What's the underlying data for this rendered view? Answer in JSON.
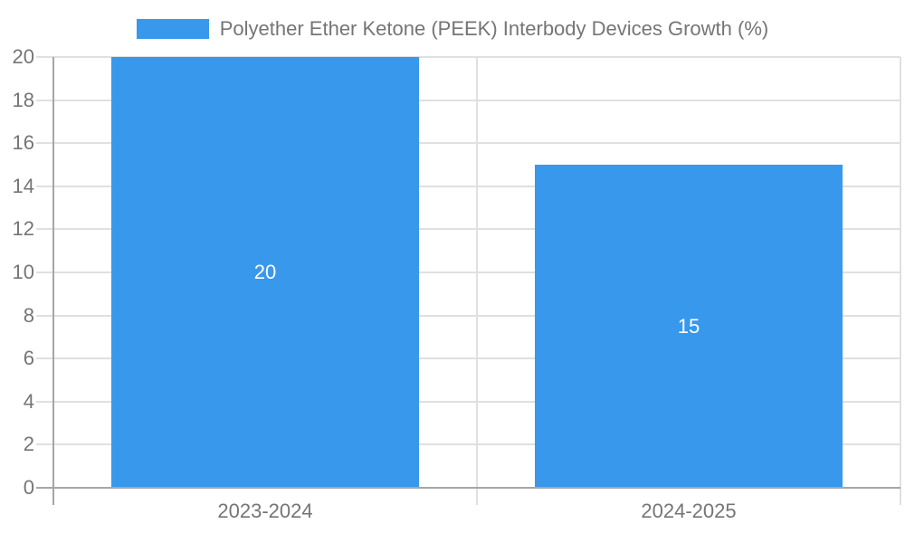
{
  "chart_data": {
    "type": "bar",
    "title": "Polyether Ether Ketone (PEEK) Interbody Devices Growth (%)",
    "categories": [
      "2023-2024",
      "2024-2025"
    ],
    "series": [
      {
        "name": "Polyether Ether Ketone (PEEK) Interbody Devices Growth (%)",
        "values": [
          20,
          15
        ]
      }
    ],
    "bar_labels": [
      "20",
      "15"
    ],
    "xlabel": "",
    "ylabel": "",
    "ylim": [
      0,
      20
    ],
    "ytick_step": 2,
    "grid": true,
    "legend_position": "top-center",
    "colors": {
      "bar": "#3898ec",
      "grid": "#e0e0e0",
      "axis": "#a6a6a6",
      "text": "#757575",
      "bar_label": "#ffffff",
      "background": "#ffffff"
    }
  },
  "legend": {
    "label": "Polyether Ether Ketone (PEEK) Interbody Devices Growth (%)"
  }
}
